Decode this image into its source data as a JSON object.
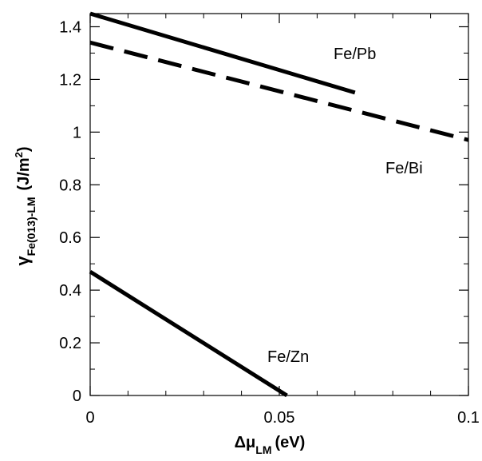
{
  "chart_data": {
    "type": "line",
    "xlabel_main": "Δμ",
    "xlabel_sub": "LM",
    "xlabel_unit": "(eV)",
    "ylabel_main": "γ",
    "ylabel_sub": "Fe(013)-LM",
    "ylabel_unit_pre": "(J/m",
    "ylabel_unit_sup": "2",
    "ylabel_unit_post": ")",
    "xlim": [
      0,
      0.1
    ],
    "ylim": [
      0,
      1.45
    ],
    "x_ticks": [
      0,
      0.05,
      0.1
    ],
    "x_tick_labels": [
      "0",
      "0.05",
      "0.1"
    ],
    "y_ticks": [
      0,
      0.2,
      0.4,
      0.6,
      0.8,
      1.0,
      1.2,
      1.4
    ],
    "y_tick_labels": [
      "0",
      "0.2",
      "0.4",
      "0.6",
      "0.8",
      "1",
      "1.2",
      "1.4"
    ],
    "series": [
      {
        "name": "Fe/Pb",
        "style": "solid",
        "x": [
          0,
          0.07
        ],
        "y": [
          1.45,
          1.15
        ]
      },
      {
        "name": "Fe/Bi",
        "style": "dashed",
        "x": [
          0,
          0.1
        ],
        "y": [
          1.34,
          0.97
        ]
      },
      {
        "name": "Fe/Zn",
        "style": "solid",
        "x": [
          0,
          0.052
        ],
        "y": [
          0.47,
          0.0
        ]
      }
    ],
    "grid": false
  }
}
